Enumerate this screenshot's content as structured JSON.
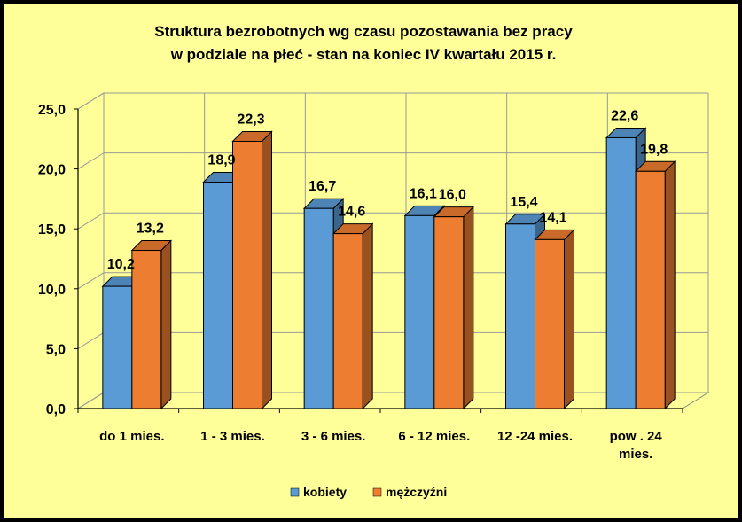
{
  "chart_data": {
    "type": "bar",
    "title_line1": "Struktura bezrobotnych wg czasu pozostawania bez pracy",
    "title_line2": "w podziale na płeć - stan na koniec IV kwartału 2015 r.",
    "categories": [
      [
        "do 1 mies."
      ],
      [
        "1 - 3 mies."
      ],
      [
        "3 - 6 mies."
      ],
      [
        "6 - 12 mies."
      ],
      [
        "12 -24 mies."
      ],
      [
        "pow . 24",
        "mies."
      ]
    ],
    "series": [
      {
        "name": "kobiety",
        "values": [
          10.2,
          18.9,
          16.7,
          16.1,
          15.4,
          22.6
        ],
        "labels": [
          "10,2",
          "18,9",
          "16,7",
          "16,1",
          "15,4",
          "22,6"
        ],
        "color": "#5b9bd5"
      },
      {
        "name": "mężczyźni",
        "values": [
          13.2,
          22.3,
          14.6,
          16.0,
          14.1,
          19.8
        ],
        "labels": [
          "13,2",
          "22,3",
          "14,6",
          "16,0",
          "14,1",
          "19,8"
        ],
        "color": "#ed7d31"
      }
    ],
    "y_ticks": [
      "0,0",
      "5,0",
      "10,0",
      "15,0",
      "20,0",
      "25,0"
    ],
    "ylim": [
      0,
      25
    ],
    "grid": true,
    "legend_position": "bottom",
    "background_color": "#ffff99"
  }
}
